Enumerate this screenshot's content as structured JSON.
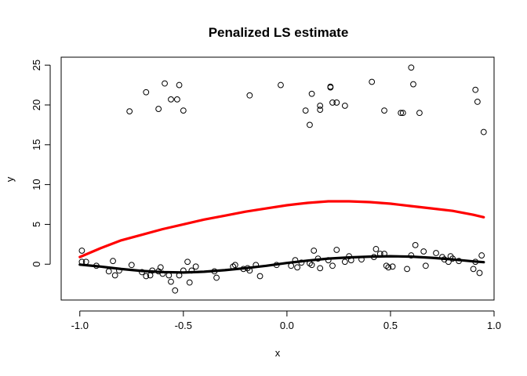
{
  "chart_data": {
    "type": "scatter",
    "title": "Penalized LS estimate",
    "xlabel": "x",
    "ylabel": "y",
    "xlim": [
      -1.09,
      1.0
    ],
    "ylim": [
      -4.5,
      26.0
    ],
    "xticks": [
      -1.0,
      -0.5,
      0.0,
      0.5,
      1.0
    ],
    "xtick_labels": [
      "-1.0",
      "-0.5",
      "0.0",
      "0.5",
      "1.0"
    ],
    "yticks": [
      0,
      5,
      10,
      15,
      20,
      25
    ],
    "ytick_labels": [
      "0",
      "5",
      "10",
      "15",
      "20",
      "25"
    ],
    "grid": false,
    "legend": "none",
    "colors": {
      "points": "#000000",
      "penalized_fit": "#ff0000",
      "true_curve": "#000000"
    },
    "points": [
      {
        "x": -0.99,
        "y": 1.7
      },
      {
        "x": -0.99,
        "y": 0.3
      },
      {
        "x": -0.97,
        "y": 0.3
      },
      {
        "x": -0.92,
        "y": -0.2
      },
      {
        "x": -0.86,
        "y": -0.9
      },
      {
        "x": -0.84,
        "y": 0.4
      },
      {
        "x": -0.83,
        "y": -1.4
      },
      {
        "x": -0.81,
        "y": -0.8
      },
      {
        "x": -0.75,
        "y": -0.1
      },
      {
        "x": -0.7,
        "y": -1.0
      },
      {
        "x": -0.68,
        "y": -1.5
      },
      {
        "x": -0.66,
        "y": -1.4
      },
      {
        "x": -0.65,
        "y": -0.8
      },
      {
        "x": -0.62,
        "y": -0.9
      },
      {
        "x": -0.61,
        "y": -0.4
      },
      {
        "x": -0.6,
        "y": -1.2
      },
      {
        "x": -0.57,
        "y": -1.4
      },
      {
        "x": -0.56,
        "y": -2.2
      },
      {
        "x": -0.54,
        "y": -3.3
      },
      {
        "x": -0.52,
        "y": -1.4
      },
      {
        "x": -0.5,
        "y": -0.8
      },
      {
        "x": -0.48,
        "y": 0.3
      },
      {
        "x": -0.47,
        "y": -2.3
      },
      {
        "x": -0.46,
        "y": -0.8
      },
      {
        "x": -0.44,
        "y": -0.3
      },
      {
        "x": -0.35,
        "y": -0.9
      },
      {
        "x": -0.34,
        "y": -1.7
      },
      {
        "x": -0.26,
        "y": -0.3
      },
      {
        "x": -0.25,
        "y": -0.1
      },
      {
        "x": -0.21,
        "y": -0.6
      },
      {
        "x": -0.19,
        "y": -0.5
      },
      {
        "x": -0.18,
        "y": -0.8
      },
      {
        "x": -0.15,
        "y": -0.1
      },
      {
        "x": -0.13,
        "y": -1.5
      },
      {
        "x": -0.05,
        "y": -0.1
      },
      {
        "x": 0.02,
        "y": -0.2
      },
      {
        "x": 0.04,
        "y": 0.5
      },
      {
        "x": 0.05,
        "y": -0.4
      },
      {
        "x": 0.07,
        "y": 0.2
      },
      {
        "x": 0.11,
        "y": 0.1
      },
      {
        "x": 0.12,
        "y": -0.1
      },
      {
        "x": 0.13,
        "y": 1.7
      },
      {
        "x": 0.15,
        "y": 0.7
      },
      {
        "x": 0.16,
        "y": -0.5
      },
      {
        "x": 0.2,
        "y": 0.5
      },
      {
        "x": 0.22,
        "y": -0.2
      },
      {
        "x": 0.24,
        "y": 1.8
      },
      {
        "x": 0.28,
        "y": 0.3
      },
      {
        "x": 0.3,
        "y": 1.0
      },
      {
        "x": 0.31,
        "y": 0.5
      },
      {
        "x": 0.36,
        "y": 0.6
      },
      {
        "x": 0.42,
        "y": 0.9
      },
      {
        "x": 0.43,
        "y": 1.9
      },
      {
        "x": 0.45,
        "y": 1.3
      },
      {
        "x": 0.47,
        "y": 1.3
      },
      {
        "x": 0.48,
        "y": -0.2
      },
      {
        "x": 0.49,
        "y": -0.4
      },
      {
        "x": 0.51,
        "y": -0.3
      },
      {
        "x": 0.58,
        "y": -0.6
      },
      {
        "x": 0.6,
        "y": 1.1
      },
      {
        "x": 0.62,
        "y": 2.4
      },
      {
        "x": 0.66,
        "y": 1.6
      },
      {
        "x": 0.67,
        "y": -0.2
      },
      {
        "x": 0.72,
        "y": 1.4
      },
      {
        "x": 0.75,
        "y": 0.9
      },
      {
        "x": 0.76,
        "y": 0.6
      },
      {
        "x": 0.78,
        "y": 0.3
      },
      {
        "x": 0.79,
        "y": 1.0
      },
      {
        "x": 0.8,
        "y": 0.7
      },
      {
        "x": 0.83,
        "y": 0.4
      },
      {
        "x": 0.9,
        "y": -0.6
      },
      {
        "x": 0.91,
        "y": 0.3
      },
      {
        "x": 0.93,
        "y": -1.1
      },
      {
        "x": 0.94,
        "y": 1.1
      },
      {
        "x": -0.76,
        "y": 19.2
      },
      {
        "x": -0.68,
        "y": 21.6
      },
      {
        "x": -0.62,
        "y": 19.5
      },
      {
        "x": -0.59,
        "y": 22.7
      },
      {
        "x": -0.56,
        "y": 20.7
      },
      {
        "x": -0.53,
        "y": 20.7
      },
      {
        "x": -0.52,
        "y": 22.5
      },
      {
        "x": -0.5,
        "y": 19.3
      },
      {
        "x": -0.18,
        "y": 21.2
      },
      {
        "x": -0.03,
        "y": 22.5
      },
      {
        "x": 0.09,
        "y": 19.3
      },
      {
        "x": 0.11,
        "y": 17.5
      },
      {
        "x": 0.12,
        "y": 21.4
      },
      {
        "x": 0.16,
        "y": 19.9
      },
      {
        "x": 0.16,
        "y": 19.4
      },
      {
        "x": 0.21,
        "y": 22.2
      },
      {
        "x": 0.21,
        "y": 22.3
      },
      {
        "x": 0.22,
        "y": 20.3
      },
      {
        "x": 0.24,
        "y": 20.3
      },
      {
        "x": 0.28,
        "y": 19.9
      },
      {
        "x": 0.41,
        "y": 22.9
      },
      {
        "x": 0.47,
        "y": 19.3
      },
      {
        "x": 0.55,
        "y": 19.0
      },
      {
        "x": 0.56,
        "y": 19.0
      },
      {
        "x": 0.6,
        "y": 24.7
      },
      {
        "x": 0.61,
        "y": 22.6
      },
      {
        "x": 0.64,
        "y": 19.0
      },
      {
        "x": 0.91,
        "y": 21.9
      },
      {
        "x": 0.92,
        "y": 20.4
      },
      {
        "x": 0.95,
        "y": 16.6
      }
    ],
    "series": [
      {
        "type": "line",
        "color": "#ff0000",
        "x": [
          -1.0,
          -0.9,
          -0.8,
          -0.7,
          -0.6,
          -0.5,
          -0.4,
          -0.3,
          -0.2,
          -0.1,
          0.0,
          0.1,
          0.2,
          0.3,
          0.4,
          0.5,
          0.6,
          0.7,
          0.8,
          0.9,
          0.95
        ],
        "y": [
          0.9,
          2.0,
          3.0,
          3.7,
          4.4,
          5.0,
          5.6,
          6.1,
          6.6,
          7.0,
          7.4,
          7.7,
          7.9,
          7.9,
          7.8,
          7.6,
          7.3,
          7.0,
          6.7,
          6.2,
          5.9
        ]
      },
      {
        "type": "line",
        "color": "#000000",
        "x": [
          -1.0,
          -0.9,
          -0.8,
          -0.7,
          -0.6,
          -0.5,
          -0.4,
          -0.3,
          -0.2,
          -0.1,
          0.0,
          0.1,
          0.2,
          0.3,
          0.4,
          0.5,
          0.6,
          0.7,
          0.8,
          0.9,
          0.95
        ],
        "y": [
          -0.05,
          -0.3,
          -0.6,
          -0.85,
          -1.0,
          -1.05,
          -0.95,
          -0.75,
          -0.5,
          -0.2,
          0.15,
          0.45,
          0.7,
          0.85,
          0.95,
          1.0,
          0.95,
          0.8,
          0.6,
          0.35,
          0.25
        ]
      }
    ]
  }
}
